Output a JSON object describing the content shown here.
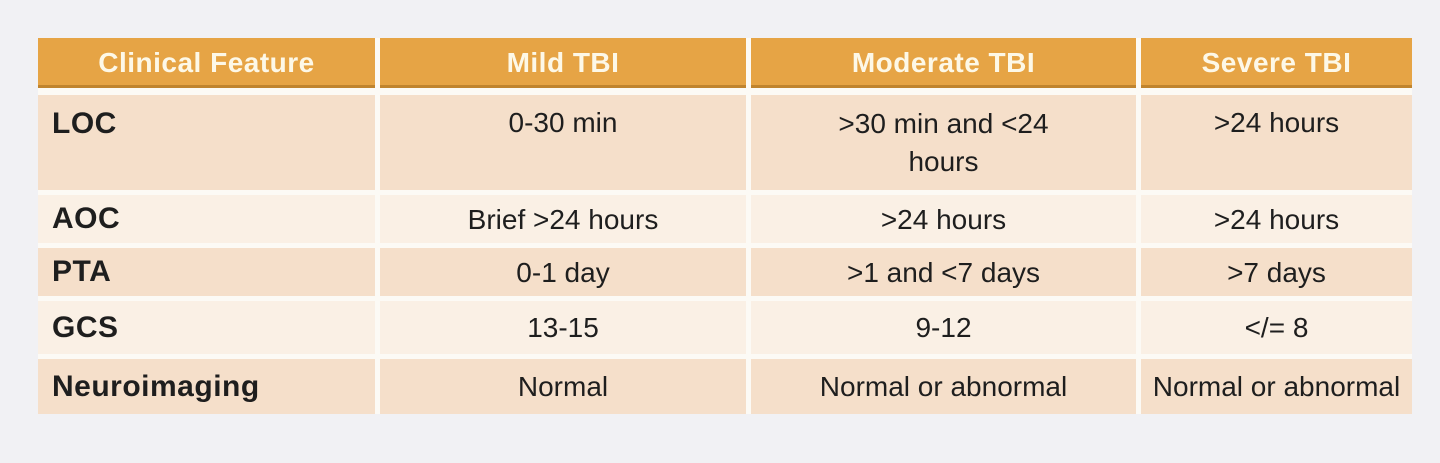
{
  "colors": {
    "page_bg": "#F1F1F4",
    "header_bg": "#E6A445",
    "header_accent": "#C0842E",
    "header_text": "#FDF8E7",
    "row_dark": "#F5DFCA",
    "row_light": "#FAF0E5",
    "separator": "#FCFAF5",
    "body_text": "#1E1E1E"
  },
  "table": {
    "headers": [
      "Clinical Feature",
      "Mild TBI",
      "Moderate TBI",
      "Severe TBI"
    ],
    "rows": [
      {
        "feature": "LOC",
        "mild": "0-30 min",
        "moderate": ">30 min and <24 hours",
        "severe": ">24 hours"
      },
      {
        "feature": "AOC",
        "mild": "Brief >24 hours",
        "moderate": ">24 hours",
        "severe": ">24 hours"
      },
      {
        "feature": "PTA",
        "mild": "0-1 day",
        "moderate": ">1 and <7 days",
        "severe": ">7 days"
      },
      {
        "feature": "GCS",
        "mild": "13-15",
        "moderate": "9-12",
        "severe": "</= 8"
      },
      {
        "feature": "Neuroimaging",
        "mild": "Normal",
        "moderate": "Normal or abnormal",
        "severe": "Normal or abnormal"
      }
    ]
  },
  "chart_data": {
    "type": "table",
    "title": "TBI severity classification by clinical feature",
    "columns": [
      "Clinical Feature",
      "Mild TBI",
      "Moderate TBI",
      "Severe TBI"
    ],
    "rows": [
      [
        "LOC",
        "0-30 min",
        ">30 min and <24 hours",
        ">24 hours"
      ],
      [
        "AOC",
        "Brief >24 hours",
        ">24 hours",
        ">24 hours"
      ],
      [
        "PTA",
        "0-1 day",
        ">1 and <7 days",
        ">7 days"
      ],
      [
        "GCS",
        "13-15",
        "9-12",
        "</= 8"
      ],
      [
        "Neuroimaging",
        "Normal",
        "Normal or abnormal",
        "Normal or abnormal"
      ]
    ]
  }
}
